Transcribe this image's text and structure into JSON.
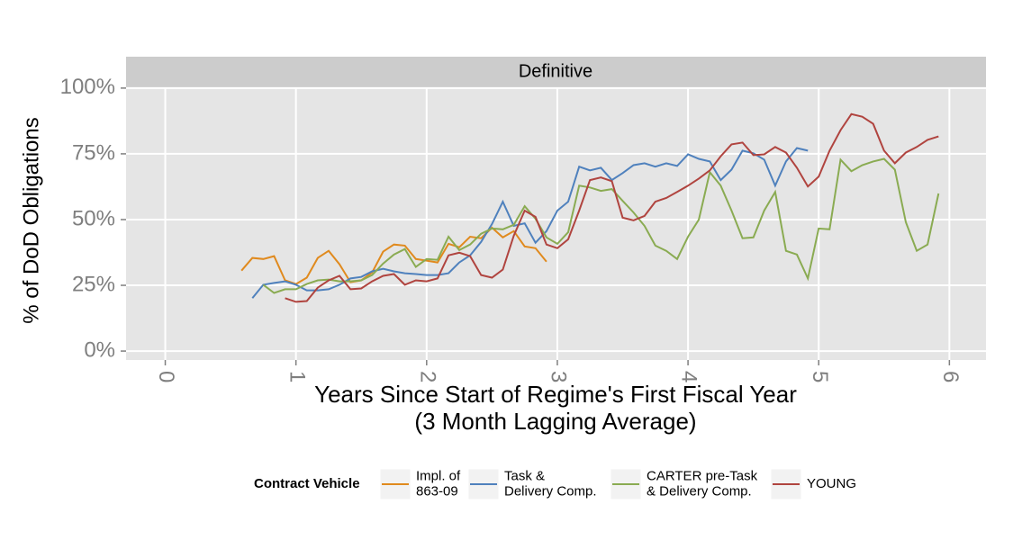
{
  "chart_data": {
    "type": "line",
    "strip_label": "Definitive",
    "xlabel": "Years Since Start of Regime's First Fiscal Year\n(3 Month Lagging Average)",
    "ylabel": "% of DoD Obligations",
    "legend_title": "Contract Vehicle",
    "xlim": [
      -0.3,
      6.28
    ],
    "xticks": [
      0,
      1,
      2,
      3,
      4,
      5,
      6
    ],
    "ylim": [
      -3.4,
      100.3
    ],
    "yticks": [
      {
        "value": 0,
        "label": "0%"
      },
      {
        "value": 25,
        "label": "25%"
      },
      {
        "value": 50,
        "label": "50%"
      },
      {
        "value": 75,
        "label": "75%"
      },
      {
        "value": 100,
        "label": "100%"
      }
    ],
    "grid": true,
    "series": [
      {
        "name": "Impl. of\n863-09",
        "color": "#e08a1e",
        "x": [
          0.583,
          0.667,
          0.75,
          0.833,
          0.917,
          1.0,
          1.083,
          1.167,
          1.25,
          1.333,
          1.417,
          1.5,
          1.583,
          1.667,
          1.75,
          1.833,
          1.917,
          2.0,
          2.083,
          2.167,
          2.25,
          2.333,
          2.417,
          2.5,
          2.583,
          2.667,
          2.75,
          2.833,
          2.917
        ],
        "values": [
          30.6,
          35.4,
          35.0,
          36.1,
          26.9,
          25.5,
          27.9,
          35.4,
          38.1,
          33.0,
          26.2,
          26.9,
          29.9,
          37.8,
          40.5,
          40.1,
          35.0,
          34.4,
          33.7,
          40.8,
          39.5,
          43.5,
          42.9,
          46.9,
          43.2,
          45.6,
          39.8,
          39.1,
          34.0
        ]
      },
      {
        "name": "Task &\nDelivery Comp.",
        "color": "#4f81bd",
        "x": [
          0.667,
          0.75,
          0.833,
          0.917,
          1.0,
          1.083,
          1.167,
          1.25,
          1.333,
          1.417,
          1.5,
          1.583,
          1.667,
          1.75,
          1.833,
          1.917,
          2.0,
          2.083,
          2.167,
          2.25,
          2.333,
          2.417,
          2.5,
          2.583,
          2.667,
          2.75,
          2.833,
          2.917,
          3.0,
          3.083,
          3.167,
          3.25,
          3.333,
          3.417,
          3.5,
          3.583,
          3.667,
          3.75,
          3.833,
          3.917,
          4.0,
          4.083,
          4.167,
          4.25,
          4.333,
          4.417,
          4.5,
          4.583,
          4.667,
          4.75,
          4.833,
          4.917
        ],
        "values": [
          20.1,
          25.2,
          25.9,
          26.5,
          25.2,
          23.1,
          23.1,
          23.5,
          25.2,
          27.6,
          28.2,
          30.3,
          31.3,
          30.3,
          29.6,
          29.3,
          28.9,
          28.9,
          29.6,
          33.7,
          36.4,
          41.5,
          48.3,
          56.8,
          47.6,
          48.6,
          41.2,
          45.6,
          53.4,
          56.8,
          70.1,
          68.7,
          69.7,
          65.0,
          67.7,
          70.7,
          71.4,
          70.1,
          71.4,
          70.4,
          74.8,
          73.1,
          72.1,
          65.0,
          69.0,
          76.2,
          75.2,
          72.8,
          62.9,
          72.1,
          77.2,
          76.2
        ]
      },
      {
        "name": "CARTER pre-Task\n& Delivery Comp.",
        "color": "#8aab52",
        "x": [
          0.75,
          0.833,
          0.917,
          1.0,
          1.083,
          1.167,
          1.25,
          1.333,
          1.417,
          1.5,
          1.583,
          1.667,
          1.75,
          1.833,
          1.917,
          2.0,
          2.083,
          2.167,
          2.25,
          2.333,
          2.417,
          2.5,
          2.583,
          2.667,
          2.75,
          2.833,
          2.917,
          3.0,
          3.083,
          3.167,
          3.25,
          3.333,
          3.417,
          3.5,
          3.583,
          3.667,
          3.75,
          3.833,
          3.917,
          4.0,
          4.083,
          4.167,
          4.25,
          4.333,
          4.417,
          4.5,
          4.583,
          4.667,
          4.75,
          4.833,
          4.917,
          5.0,
          5.083,
          5.167,
          5.25,
          5.333,
          5.417,
          5.5,
          5.583,
          5.667,
          5.75,
          5.833,
          5.917
        ],
        "values": [
          25.2,
          22.1,
          23.5,
          23.5,
          25.5,
          26.9,
          27.2,
          26.5,
          26.5,
          26.9,
          28.9,
          33.3,
          36.7,
          38.8,
          32.0,
          35.0,
          34.7,
          43.5,
          38.4,
          40.5,
          44.6,
          46.6,
          46.3,
          48.0,
          55.1,
          50.3,
          43.2,
          40.8,
          45.2,
          62.9,
          62.2,
          60.9,
          61.6,
          57.1,
          52.7,
          47.6,
          40.1,
          38.1,
          35.0,
          43.5,
          50.0,
          68.0,
          62.9,
          53.4,
          42.9,
          43.2,
          53.4,
          60.5,
          38.1,
          36.7,
          27.6,
          46.6,
          46.3,
          72.8,
          68.4,
          70.7,
          72.1,
          73.1,
          69.0,
          49.0,
          38.1,
          40.5,
          59.9
        ]
      },
      {
        "name": "YOUNG",
        "color": "#b0443f",
        "x": [
          0.917,
          1.0,
          1.083,
          1.167,
          1.25,
          1.333,
          1.417,
          1.5,
          1.583,
          1.667,
          1.75,
          1.833,
          1.917,
          2.0,
          2.083,
          2.167,
          2.25,
          2.333,
          2.417,
          2.5,
          2.583,
          2.667,
          2.75,
          2.833,
          2.917,
          3.0,
          3.083,
          3.167,
          3.25,
          3.333,
          3.417,
          3.5,
          3.583,
          3.667,
          3.75,
          3.833,
          3.917,
          4.0,
          4.083,
          4.167,
          4.25,
          4.333,
          4.417,
          4.5,
          4.583,
          4.667,
          4.75,
          4.833,
          4.917,
          5.0,
          5.083,
          5.167,
          5.25,
          5.333,
          5.417,
          5.5,
          5.583,
          5.667,
          5.75,
          5.833,
          5.917
        ],
        "values": [
          20.1,
          18.7,
          19.0,
          24.1,
          26.9,
          28.6,
          23.5,
          23.8,
          26.5,
          28.6,
          29.3,
          25.2,
          26.9,
          26.5,
          27.6,
          36.4,
          37.4,
          36.1,
          28.9,
          27.9,
          31.0,
          43.9,
          53.4,
          51.0,
          40.5,
          39.1,
          42.5,
          53.4,
          65.0,
          66.0,
          64.6,
          50.7,
          49.7,
          51.4,
          56.8,
          58.2,
          60.5,
          62.9,
          65.6,
          68.7,
          74.1,
          78.6,
          79.3,
          74.5,
          74.8,
          77.6,
          75.5,
          69.7,
          62.6,
          66.3,
          76.2,
          84.0,
          90.1,
          89.1,
          86.4,
          76.2,
          71.4,
          75.5,
          77.6,
          80.3,
          81.6
        ]
      }
    ]
  }
}
